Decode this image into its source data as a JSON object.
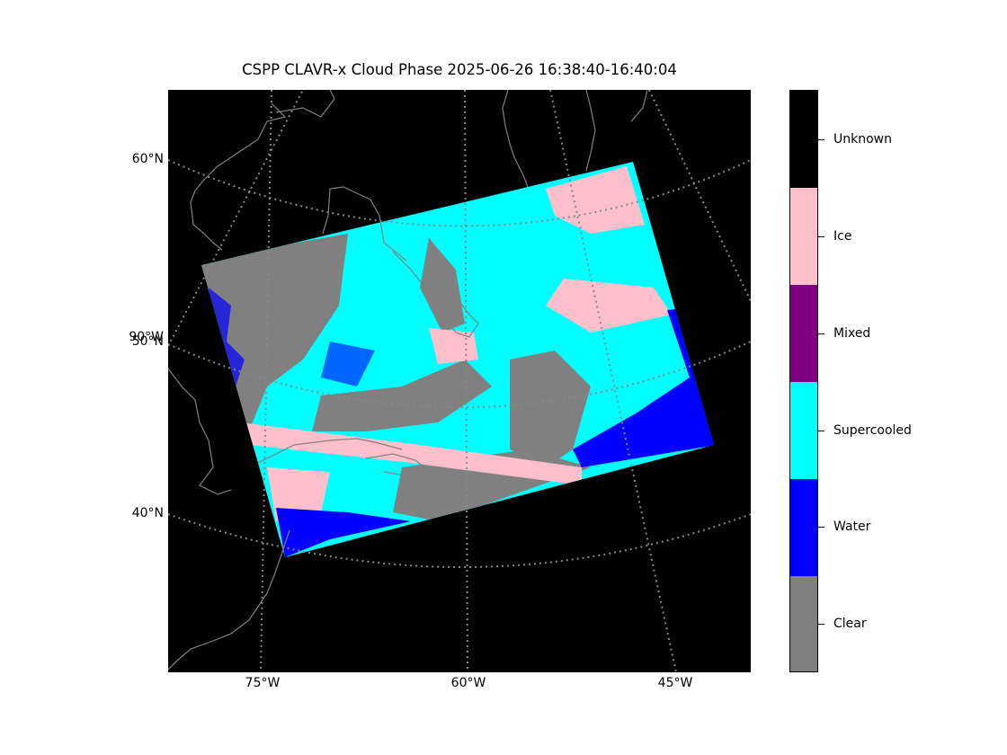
{
  "title": "CSPP CLAVR-x Cloud Phase 2025-06-26 16:38:40-16:40:04",
  "map": {
    "graticule_color": "#888888",
    "coastline_color": "#808080",
    "background": "#000000",
    "lat_labels": [
      "60°N",
      "90°W",
      "50°N",
      "40°N"
    ],
    "lon_labels": [
      "75°W",
      "60°W",
      "45°W"
    ]
  },
  "legend": {
    "categories": [
      {
        "label": "Unknown",
        "color": "#000000"
      },
      {
        "label": "Ice",
        "color": "#ffc0cb"
      },
      {
        "label": "Mixed",
        "color": "#800080"
      },
      {
        "label": "Supercooled",
        "color": "#00ffff"
      },
      {
        "label": "Water",
        "color": "#0000ff"
      },
      {
        "label": "Clear",
        "color": "#808080"
      }
    ]
  }
}
